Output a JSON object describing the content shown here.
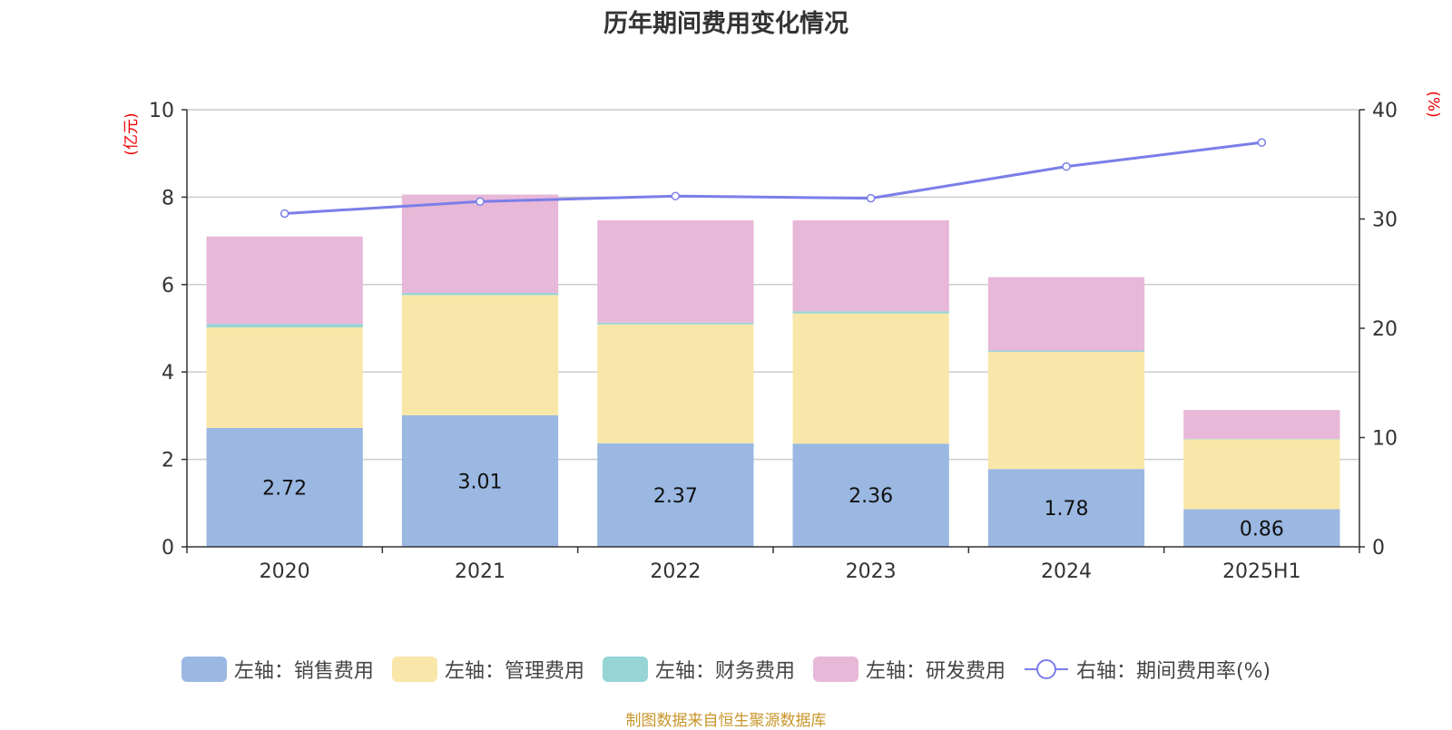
{
  "title": "历年期间费用变化情况",
  "source_note": "制图数据来自恒生聚源数据库",
  "chart_data": {
    "type": "bar",
    "stacked": true,
    "categories": [
      "2020",
      "2021",
      "2022",
      "2023",
      "2024",
      "2025H1"
    ],
    "left_axis": {
      "unit_label": "(亿元)",
      "ylim": [
        0,
        10
      ],
      "ticks": [
        "0",
        "2",
        "4",
        "6",
        "8",
        "10"
      ]
    },
    "right_axis": {
      "unit_label": "(%)",
      "ylim": [
        0,
        40
      ],
      "ticks": [
        "0",
        "10",
        "20",
        "30",
        "40"
      ]
    },
    "grid": true,
    "legend_position": "bottom",
    "series": [
      {
        "name": "左轴：销售费用",
        "type": "bar",
        "axis": "left",
        "color": "#9bb8e2",
        "values": [
          2.72,
          3.01,
          2.37,
          2.36,
          1.78,
          0.86
        ],
        "labels": [
          "2.72",
          "3.01",
          "2.37",
          "2.36",
          "1.78",
          "0.86"
        ]
      },
      {
        "name": "左轴：管理费用",
        "type": "bar",
        "axis": "left",
        "color": "#f8e7a9",
        "values": [
          2.3,
          2.75,
          2.72,
          2.98,
          2.68,
          1.6
        ]
      },
      {
        "name": "左轴：财务费用",
        "type": "bar",
        "axis": "left",
        "color": "#96d4d6",
        "values": [
          0.08,
          0.05,
          0.04,
          0.05,
          0.03,
          0.01
        ]
      },
      {
        "name": "左轴：研发费用",
        "type": "bar",
        "axis": "left",
        "color": "#e8b8d8",
        "values": [
          2.0,
          2.25,
          2.34,
          2.08,
          1.68,
          0.66
        ]
      },
      {
        "name": "右轴：期间费用率(%)",
        "type": "line",
        "axis": "right",
        "color": "#7b7ee8",
        "values": [
          30.5,
          31.6,
          32.1,
          31.9,
          34.8,
          37.0
        ]
      }
    ]
  }
}
